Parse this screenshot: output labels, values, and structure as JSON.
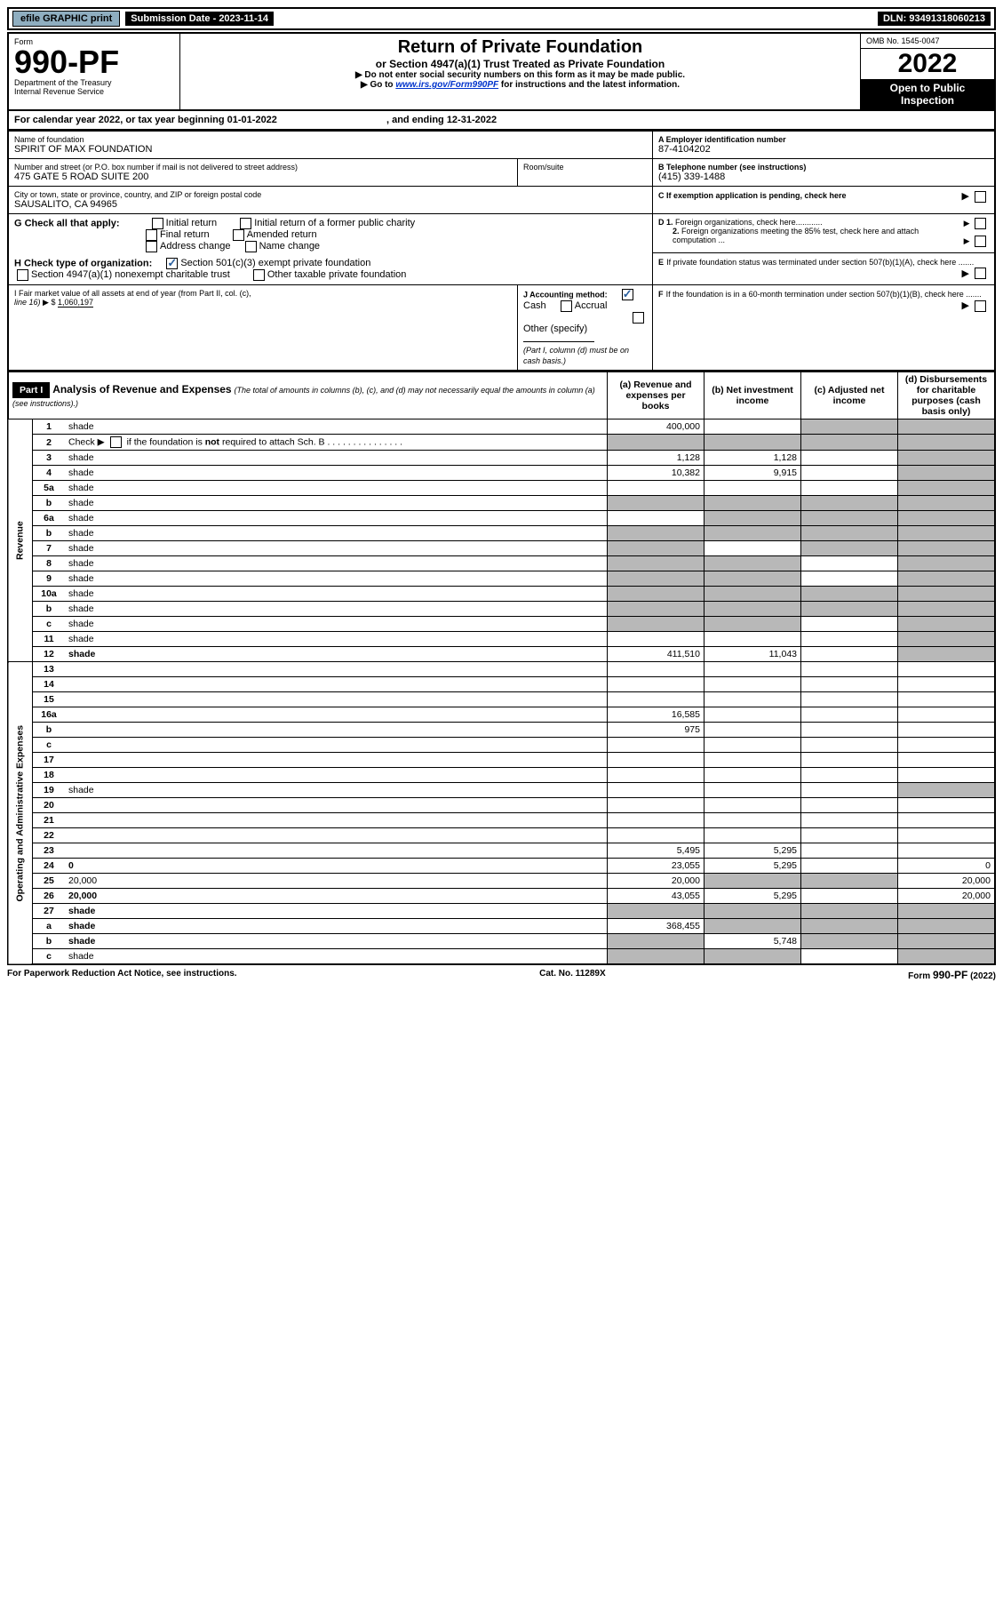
{
  "topbar": {
    "efile_label": "efile GRAPHIC print",
    "submission_label": "Submission Date - 2023-11-14",
    "dln_label": "DLN: 93491318060213"
  },
  "header": {
    "form_word": "Form",
    "form_number": "990-PF",
    "dept": "Department of the Treasury",
    "irs": "Internal Revenue Service",
    "title": "Return of Private Foundation",
    "subtitle": "or Section 4947(a)(1) Trust Treated as Private Foundation",
    "instr1": "▶ Do not enter social security numbers on this form as it may be made public.",
    "instr2_prefix": "▶ Go to ",
    "instr2_link": "www.irs.gov/Form990PF",
    "instr2_suffix": " for instructions and the latest information.",
    "omb": "OMB No. 1545-0047",
    "year": "2022",
    "open_inspect": "Open to Public Inspection"
  },
  "period": {
    "text1": "For calendar year 2022, or tax year beginning 01-01-2022",
    "text2": ", and ending 12-31-2022"
  },
  "info": {
    "name_label": "Name of foundation",
    "name": "SPIRIT OF MAX FOUNDATION",
    "addr_label": "Number and street (or P.O. box number if mail is not delivered to street address)",
    "addr": "475 GATE 5 ROAD SUITE 200",
    "room_label": "Room/suite",
    "city_label": "City or town, state or province, country, and ZIP or foreign postal code",
    "city": "SAUSALITO, CA  94965",
    "a_label": "A Employer identification number",
    "a_val": "87-4104202",
    "b_label": "B Telephone number (see instructions)",
    "b_val": "(415) 339-1488",
    "c_label": "C If exemption application is pending, check here",
    "d1_label": "D 1. Foreign organizations, check here............",
    "d2_label": "2. Foreign organizations meeting the 85% test, check here and attach computation ...",
    "e_label": "E  If private foundation status was terminated under section 507(b)(1)(A), check here .......",
    "f_label": "F  If the foundation is in a 60-month termination under section 507(b)(1)(B), check here .......",
    "g_label": "G Check all that apply:",
    "g_opts": [
      "Initial return",
      "Initial return of a former public charity",
      "Final return",
      "Amended return",
      "Address change",
      "Name change"
    ],
    "h_label": "H Check type of organization:",
    "h_opts": [
      "Section 501(c)(3) exempt private foundation",
      "Section 4947(a)(1) nonexempt charitable trust",
      "Other taxable private foundation"
    ],
    "i_label": "I Fair market value of all assets at end of year (from Part II, col. (c),",
    "i_line": "line 16) ▶ $  ",
    "i_val": "1,060,197",
    "j_label": "J Accounting method:",
    "j_cash": "Cash",
    "j_accrual": "Accrual",
    "j_other": "Other (specify)",
    "j_note": "(Part I, column (d) must be on cash basis.)"
  },
  "part1": {
    "label": "Part I",
    "title": "Analysis of Revenue and Expenses",
    "title_note": " (The total of amounts in columns (b), (c), and (d) may not necessarily equal the amounts in column (a) (see instructions).)",
    "col_a": "(a)   Revenue and expenses per books",
    "col_b": "(b)   Net investment income",
    "col_c": "(c)   Adjusted net income",
    "col_d": "(d)   Disbursements for charitable purposes (cash basis only)"
  },
  "sections": {
    "revenue": "Revenue",
    "expenses": "Operating and Administrative Expenses"
  },
  "rows": [
    {
      "n": "1",
      "d": "shade",
      "a": "400,000",
      "b": "",
      "c": "shade"
    },
    {
      "n": "2",
      "d": "shade",
      "a": "shade",
      "b": "shade",
      "c": "shade"
    },
    {
      "n": "3",
      "d": "shade",
      "a": "1,128",
      "b": "1,128",
      "c": ""
    },
    {
      "n": "4",
      "d": "shade",
      "a": "10,382",
      "b": "9,915",
      "c": ""
    },
    {
      "n": "5a",
      "d": "shade",
      "a": "",
      "b": "",
      "c": ""
    },
    {
      "n": "b",
      "d": "shade",
      "a": "shade",
      "b": "shade",
      "c": "shade"
    },
    {
      "n": "6a",
      "d": "shade",
      "a": "",
      "b": "shade",
      "c": "shade"
    },
    {
      "n": "b",
      "d": "shade",
      "a": "shade",
      "b": "shade",
      "c": "shade"
    },
    {
      "n": "7",
      "d": "shade",
      "a": "shade",
      "b": "",
      "c": "shade"
    },
    {
      "n": "8",
      "d": "shade",
      "a": "shade",
      "b": "shade",
      "c": ""
    },
    {
      "n": "9",
      "d": "shade",
      "a": "shade",
      "b": "shade",
      "c": ""
    },
    {
      "n": "10a",
      "d": "shade",
      "a": "shade",
      "b": "shade",
      "c": "shade"
    },
    {
      "n": "b",
      "d": "shade",
      "a": "shade",
      "b": "shade",
      "c": "shade"
    },
    {
      "n": "c",
      "d": "shade",
      "a": "shade",
      "b": "shade",
      "c": ""
    },
    {
      "n": "11",
      "d": "shade",
      "a": "",
      "b": "",
      "c": ""
    },
    {
      "n": "12",
      "d": "shade",
      "a": "411,510",
      "b": "11,043",
      "c": ""
    },
    {
      "n": "13",
      "d": "",
      "a": "",
      "b": "",
      "c": ""
    },
    {
      "n": "14",
      "d": "",
      "a": "",
      "b": "",
      "c": ""
    },
    {
      "n": "15",
      "d": "",
      "a": "",
      "b": "",
      "c": ""
    },
    {
      "n": "16a",
      "d": "",
      "a": "16,585",
      "b": "",
      "c": ""
    },
    {
      "n": "b",
      "d": "",
      "a": "975",
      "b": "",
      "c": ""
    },
    {
      "n": "c",
      "d": "",
      "a": "",
      "b": "",
      "c": ""
    },
    {
      "n": "17",
      "d": "",
      "a": "",
      "b": "",
      "c": ""
    },
    {
      "n": "18",
      "d": "",
      "a": "",
      "b": "",
      "c": ""
    },
    {
      "n": "19",
      "d": "shade",
      "a": "",
      "b": "",
      "c": ""
    },
    {
      "n": "20",
      "d": "",
      "a": "",
      "b": "",
      "c": ""
    },
    {
      "n": "21",
      "d": "",
      "a": "",
      "b": "",
      "c": ""
    },
    {
      "n": "22",
      "d": "",
      "a": "",
      "b": "",
      "c": ""
    },
    {
      "n": "23",
      "d": "",
      "a": "5,495",
      "b": "5,295",
      "c": ""
    },
    {
      "n": "24",
      "d": "0",
      "a": "23,055",
      "b": "5,295",
      "c": ""
    },
    {
      "n": "25",
      "d": "20,000",
      "a": "20,000",
      "b": "shade",
      "c": "shade"
    },
    {
      "n": "26",
      "d": "20,000",
      "a": "43,055",
      "b": "5,295",
      "c": ""
    },
    {
      "n": "27",
      "d": "shade",
      "a": "shade",
      "b": "shade",
      "c": "shade"
    },
    {
      "n": "a",
      "d": "shade",
      "a": "368,455",
      "b": "shade",
      "c": "shade"
    },
    {
      "n": "b",
      "d": "shade",
      "a": "shade",
      "b": "5,748",
      "c": "shade"
    },
    {
      "n": "c",
      "d": "shade",
      "a": "shade",
      "b": "shade",
      "c": ""
    }
  ],
  "footer": {
    "left": "For Paperwork Reduction Act Notice, see instructions.",
    "mid": "Cat. No. 11289X",
    "right": "Form 990-PF (2022)"
  }
}
